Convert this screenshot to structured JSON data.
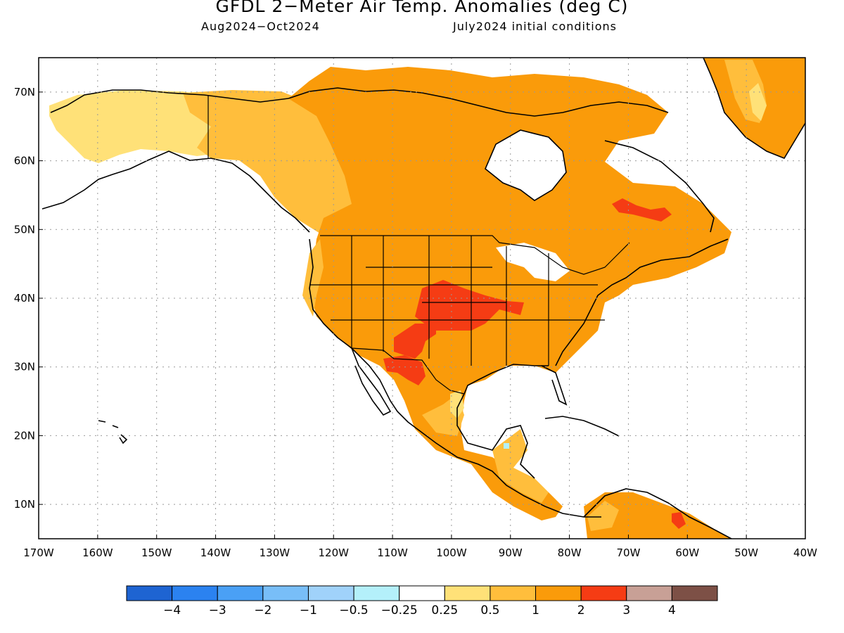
{
  "title": "GFDL 2−Meter Air Temp. Anomalies (deg C)",
  "subtitle_left": "Aug2024−Oct2024",
  "subtitle_right": "July2024 initial conditions",
  "map": {
    "lon_range": [
      -170,
      -40
    ],
    "lat_range": [
      5,
      75
    ],
    "lat_ticks": [
      "10N",
      "20N",
      "30N",
      "40N",
      "50N",
      "60N",
      "70N"
    ],
    "lon_ticks": [
      "170W",
      "160W",
      "150W",
      "140W",
      "130W",
      "120W",
      "110W",
      "100W",
      "90W",
      "80W",
      "70W",
      "60W",
      "50W",
      "40W"
    ],
    "gridlines": "dotted"
  },
  "colorbar": {
    "colors": [
      "#1e64d2",
      "#2b82f0",
      "#4aa0f5",
      "#78bef8",
      "#a0d2fa",
      "#b4f0fa",
      "#ffffff",
      "#ffe178",
      "#ffbe3c",
      "#fa9b0a",
      "#f53c14",
      "#c8a096",
      "#7d5046"
    ],
    "labels": [
      "−4",
      "−3",
      "−2",
      "−1",
      "−0.5",
      "−0.25",
      "0.25",
      "0.5",
      "1",
      "2",
      "3",
      "4"
    ]
  },
  "anomaly_legend": {
    "light": "#ffe178",
    "medium": "#ffbe3c",
    "strong": "#fa9b0a",
    "hot": "#f53c14",
    "cool": "#b4f0fa"
  }
}
